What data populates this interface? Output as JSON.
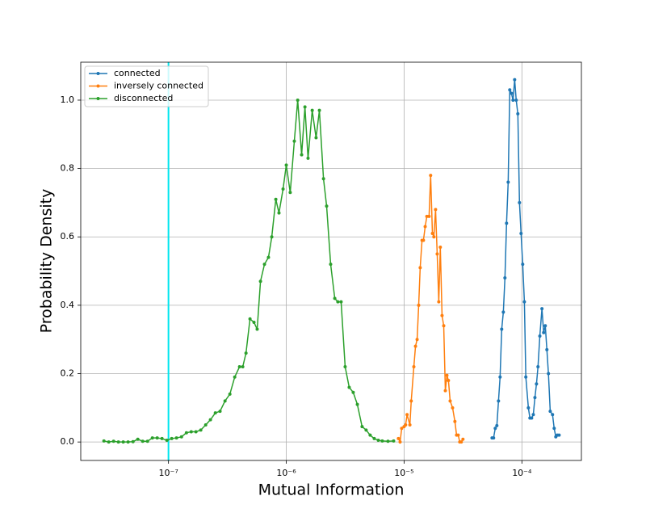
{
  "chart_data": {
    "type": "line",
    "x_label": "Mutual Information",
    "y_label": "Probability Density",
    "xscale": "log",
    "grid": true,
    "legend": "upper left",
    "xlim": [
      1.8e-08,
      0.00032
    ],
    "ylim": [
      -0.054,
      1.111
    ],
    "xticks": [
      {
        "value": 1e-07,
        "label": "10⁻⁷"
      },
      {
        "value": 1e-06,
        "label": "10⁻⁶"
      },
      {
        "value": 1e-05,
        "label": "10⁻⁵"
      },
      {
        "value": 0.0001,
        "label": "10⁻⁴"
      }
    ],
    "yticks": [
      {
        "value": 0,
        "label": "0.0"
      },
      0.2,
      0.4,
      0.6,
      0.8,
      {
        "value": 1,
        "label": "1.0"
      }
    ],
    "vline": {
      "x": 1e-07,
      "color": "#00e5ee"
    },
    "series": [
      {
        "name": "connected",
        "color": "#1f77b4",
        "x": [
          5.58e-05,
          5.75e-05,
          5.94e-05,
          6.13e-05,
          6.33e-05,
          6.53e-05,
          6.74e-05,
          6.96e-05,
          7.18e-05,
          7.41e-05,
          7.65e-05,
          7.89e-05,
          8.15e-05,
          8.41e-05,
          8.68e-05,
          8.95e-05,
          9.24e-05,
          9.54e-05,
          9.84e-05,
          0.0001016,
          0.000105,
          0.000108,
          0.0001135,
          0.000117,
          0.000121,
          0.000125,
          0.000129,
          0.000133,
          0.000137,
          0.000142,
          0.000148,
          0.000153,
          0.000158,
          0.000163,
          0.000168,
          0.000174,
          0.000182,
          0.000188,
          0.000194,
          0.0002,
          0.000207
        ],
        "values": [
          0.012,
          0.012,
          0.04,
          0.048,
          0.12,
          0.19,
          0.33,
          0.38,
          0.48,
          0.64,
          0.76,
          1.03,
          1.02,
          1.0,
          1.06,
          1.0,
          0.96,
          0.7,
          0.61,
          0.52,
          0.41,
          0.19,
          0.1,
          0.07,
          0.07,
          0.08,
          0.13,
          0.17,
          0.22,
          0.31,
          0.39,
          0.32,
          0.34,
          0.27,
          0.2,
          0.09,
          0.08,
          0.04,
          0.015,
          0.02,
          0.02
        ]
      },
      {
        "name": "inversely connected",
        "color": "#ff7f0e",
        "x": [
          8.95e-06,
          9.25e-06,
          9.54e-06,
          1e-05,
          1.03e-05,
          1.06e-05,
          1.12e-05,
          1.15e-05,
          1.21e-05,
          1.25e-05,
          1.29e-05,
          1.33e-05,
          1.37e-05,
          1.42e-05,
          1.46e-05,
          1.51e-05,
          1.56e-05,
          1.63e-05,
          1.68e-05,
          1.74e-05,
          1.79e-05,
          1.85e-05,
          1.91e-05,
          1.97e-05,
          2.03e-05,
          2.1e-05,
          2.17e-05,
          2.24e-05,
          2.31e-05,
          2.38e-05,
          2.46e-05,
          2.58e-05,
          2.7e-05,
          2.79e-05,
          2.88e-05,
          2.97e-05,
          3.06e-05,
          3.16e-05
        ],
        "values": [
          0.01,
          0.0,
          0.04,
          0.045,
          0.05,
          0.08,
          0.05,
          0.12,
          0.22,
          0.28,
          0.3,
          0.4,
          0.51,
          0.59,
          0.59,
          0.63,
          0.66,
          0.66,
          0.78,
          0.61,
          0.6,
          0.68,
          0.55,
          0.41,
          0.57,
          0.37,
          0.34,
          0.15,
          0.195,
          0.18,
          0.12,
          0.1,
          0.06,
          0.02,
          0.02,
          0.0,
          0.0,
          0.008
        ]
      },
      {
        "name": "disconnected",
        "color": "#2ca02c",
        "x": [
          2.83e-08,
          3.11e-08,
          3.42e-08,
          3.76e-08,
          4.13e-08,
          4.54e-08,
          5e-08,
          5.49e-08,
          6.04e-08,
          6.64e-08,
          7.3e-08,
          8.02e-08,
          8.81e-08,
          9.69e-08,
          1.065e-07,
          1.17e-07,
          1.29e-07,
          1.42e-07,
          1.56e-07,
          1.71e-07,
          1.88e-07,
          2.07e-07,
          2.27e-07,
          2.5e-07,
          2.74e-07,
          3.02e-07,
          3.32e-07,
          3.65e-07,
          4.01e-07,
          4.27e-07,
          4.55e-07,
          4.92e-07,
          5.32e-07,
          5.66e-07,
          6.04e-07,
          6.53e-07,
          7.06e-07,
          7.53e-07,
          8.15e-07,
          8.67e-07,
          9.39e-07,
          1e-06,
          1.08e-06,
          1.17e-06,
          1.25e-06,
          1.35e-06,
          1.44e-06,
          1.53e-06,
          1.66e-06,
          1.79e-06,
          1.91e-06,
          2.07e-06,
          2.2e-06,
          2.38e-06,
          2.58e-06,
          2.74e-06,
          2.92e-06,
          3.16e-06,
          3.42e-06,
          3.7e-06,
          4.01e-06,
          4.4e-06,
          4.76e-06,
          5.15e-06,
          5.58e-06,
          6.04e-06,
          6.53e-06,
          7.3e-06,
          8.15e-06
        ],
        "values": [
          0.003,
          0.0,
          0.002,
          0.0,
          0.0,
          0.0,
          0.001,
          0.008,
          0.002,
          0.002,
          0.012,
          0.012,
          0.01,
          0.005,
          0.01,
          0.012,
          0.015,
          0.027,
          0.03,
          0.03,
          0.035,
          0.05,
          0.065,
          0.085,
          0.09,
          0.12,
          0.14,
          0.19,
          0.22,
          0.22,
          0.26,
          0.36,
          0.35,
          0.33,
          0.47,
          0.52,
          0.54,
          0.6,
          0.71,
          0.67,
          0.74,
          0.81,
          0.73,
          0.88,
          1.0,
          0.84,
          0.98,
          0.83,
          0.97,
          0.89,
          0.97,
          0.77,
          0.69,
          0.52,
          0.42,
          0.41,
          0.41,
          0.22,
          0.16,
          0.145,
          0.11,
          0.045,
          0.035,
          0.02,
          0.01,
          0.005,
          0.003,
          0.002,
          0.003
        ]
      }
    ]
  }
}
